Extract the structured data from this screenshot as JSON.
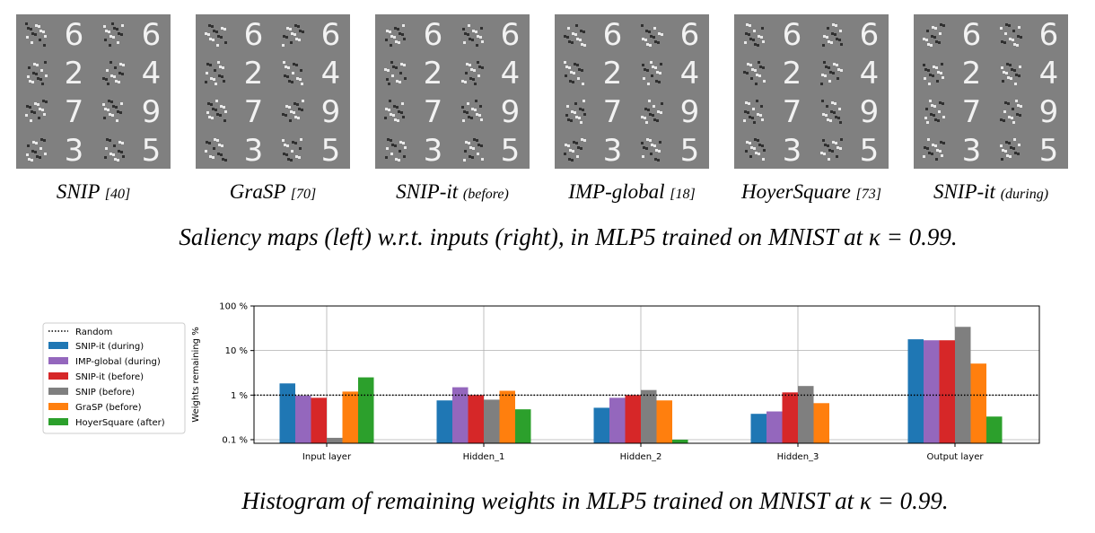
{
  "figure": {
    "panels": [
      {
        "name": "SNIP",
        "ref": "[40]"
      },
      {
        "name": "GraSP",
        "ref": "[70]"
      },
      {
        "name": "SNIP-it",
        "ref": "(before)"
      },
      {
        "name": "IMP-global",
        "ref": "[18]"
      },
      {
        "name": "HoyerSquare",
        "ref": "[73]"
      },
      {
        "name": "SNIP-it",
        "ref": "(during)"
      }
    ],
    "digits": [
      [
        "6",
        "2",
        "7",
        "3"
      ],
      [
        "6",
        "4",
        "9",
        "5"
      ]
    ],
    "caption": "Saliency maps (left) w.r.t. inputs (right), in MLP5 trained on MNIST at κ = 0.99."
  },
  "chart_data": {
    "type": "bar",
    "ylabel": "Weights remaining %",
    "log_scale": true,
    "grid": true,
    "legend": "left",
    "categories": [
      "Input layer",
      "Hidden_1",
      "Hidden_2",
      "Hidden_3",
      "Output layer"
    ],
    "ylim": [
      0.083,
      100
    ],
    "yticks": [
      {
        "value": 0.1,
        "label": "0.1 %"
      },
      {
        "value": 1,
        "label": "1 %"
      },
      {
        "value": 10,
        "label": "10 %"
      },
      {
        "value": 100,
        "label": "100 %"
      }
    ],
    "reference_line": {
      "name": "Random",
      "value": 1,
      "color": "#000000"
    },
    "series": [
      {
        "name": "SNIP-it (during)",
        "color": "#1f77b4",
        "values": [
          1.83,
          0.76,
          0.52,
          0.38,
          17.9
        ]
      },
      {
        "name": "IMP-global (during)",
        "color": "#9467bd",
        "values": [
          0.97,
          1.5,
          0.87,
          0.43,
          17
        ]
      },
      {
        "name": "SNIP-it (before)",
        "color": "#d62728",
        "values": [
          0.87,
          1.0,
          1.0,
          1.15,
          17
        ]
      },
      {
        "name": "SNIP (before)",
        "color": "#7f7f7f",
        "values": [
          0.11,
          0.79,
          1.3,
          1.6,
          34
        ]
      },
      {
        "name": "GraSP (before)",
        "color": "#ff7f0e",
        "values": [
          1.2,
          1.25,
          0.76,
          0.66,
          5.1
        ]
      },
      {
        "name": "HoyerSquare (after)",
        "color": "#2ca02c",
        "values": [
          2.5,
          0.48,
          0.1,
          null,
          0.33
        ]
      }
    ],
    "caption": "Histogram of remaining weights in MLP5 trained on MNIST at κ = 0.99."
  }
}
